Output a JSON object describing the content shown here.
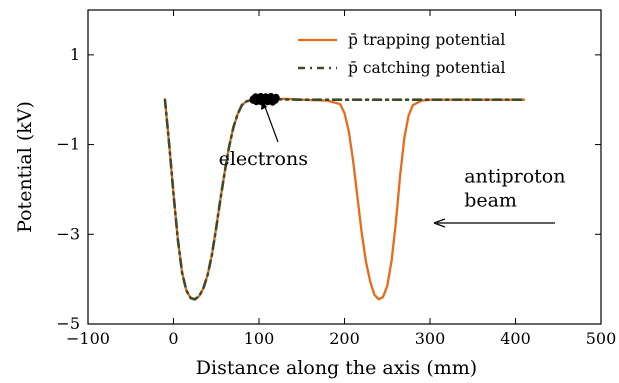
{
  "chart_data": {
    "type": "line",
    "xlabel": "Distance along the axis (mm)",
    "ylabel": "Potential (kV)",
    "xlim": [
      -100,
      500
    ],
    "ylim": [
      -5,
      2
    ],
    "x_ticks": [
      -100,
      0,
      100,
      200,
      300,
      400,
      500
    ],
    "x_tick_labels": [
      "−100",
      "0",
      "100",
      "200",
      "300",
      "400",
      "500"
    ],
    "y_ticks": [
      1,
      -1,
      -3,
      -5
    ],
    "y_tick_labels": [
      "1",
      "−1",
      "−3",
      "−5"
    ],
    "colors": {
      "trapping": "#e46c1c",
      "catching": "#3f4a2a",
      "electrons": "#000000"
    },
    "legend": {
      "position": "top-right",
      "entries": [
        {
          "key": "trapping",
          "label": "p̄ trapping potential",
          "style": "solid"
        },
        {
          "key": "catching",
          "label": "p̄ catching potential",
          "style": "dash-dot"
        }
      ]
    },
    "series": [
      {
        "key": "trapping",
        "style": "solid",
        "x": [
          -10,
          -5,
          0,
          5,
          10,
          15,
          20,
          25,
          30,
          35,
          40,
          45,
          50,
          55,
          60,
          65,
          70,
          75,
          80,
          85,
          90,
          95,
          100,
          110,
          120,
          130,
          150,
          180,
          195,
          200,
          205,
          210,
          215,
          220,
          225,
          230,
          235,
          240,
          245,
          250,
          255,
          260,
          265,
          270,
          275,
          280,
          290,
          300,
          330,
          360,
          410
        ],
        "y": [
          0,
          -1.0,
          -2.1,
          -3.1,
          -3.85,
          -4.25,
          -4.42,
          -4.45,
          -4.38,
          -4.2,
          -3.9,
          -3.45,
          -2.85,
          -2.2,
          -1.6,
          -1.05,
          -0.62,
          -0.32,
          -0.12,
          -0.04,
          -0.01,
          0.0,
          0.0,
          0.0,
          0.01,
          0.02,
          0.0,
          -0.02,
          -0.1,
          -0.3,
          -0.7,
          -1.35,
          -2.15,
          -2.95,
          -3.6,
          -4.05,
          -4.35,
          -4.45,
          -4.4,
          -4.15,
          -3.6,
          -2.75,
          -1.7,
          -0.85,
          -0.35,
          -0.12,
          -0.02,
          0.0,
          0.0,
          0.0,
          0.0
        ]
      },
      {
        "key": "catching",
        "style": "dash-dot",
        "x": [
          -10,
          -5,
          0,
          5,
          10,
          15,
          20,
          25,
          30,
          35,
          40,
          45,
          50,
          55,
          60,
          65,
          70,
          75,
          80,
          85,
          90,
          95,
          100,
          120,
          150,
          200,
          250,
          300,
          330,
          360,
          410
        ],
        "y": [
          0,
          -1.0,
          -2.1,
          -3.1,
          -3.85,
          -4.25,
          -4.42,
          -4.45,
          -4.38,
          -4.2,
          -3.9,
          -3.45,
          -2.85,
          -2.2,
          -1.6,
          -1.05,
          -0.62,
          -0.32,
          -0.12,
          -0.04,
          -0.01,
          0.0,
          0.0,
          0.01,
          0.0,
          0.0,
          0.0,
          0.0,
          0.0,
          0.0,
          0.0
        ]
      }
    ],
    "electrons": {
      "x": [
        93,
        96,
        99,
        102,
        105,
        108,
        111,
        114,
        117,
        120,
        97,
        101,
        104,
        107,
        110,
        113,
        116,
        119,
        95,
        103,
        109,
        115
      ],
      "y": [
        0.0,
        0.05,
        0.02,
        0.06,
        0.01,
        0.05,
        0.02,
        0.06,
        0.01,
        0.04,
        -0.03,
        -0.02,
        -0.04,
        -0.01,
        -0.03,
        -0.02,
        -0.04,
        0.0,
        0.03,
        0.03,
        0.03,
        0.03
      ]
    },
    "annotations": [
      {
        "name": "electrons",
        "text": [
          "electrons"
        ],
        "x": 105,
        "y": -1.45
      },
      {
        "name": "beam",
        "text": [
          "antiproton",
          "beam"
        ],
        "x": 340,
        "y": -1.85
      }
    ]
  }
}
